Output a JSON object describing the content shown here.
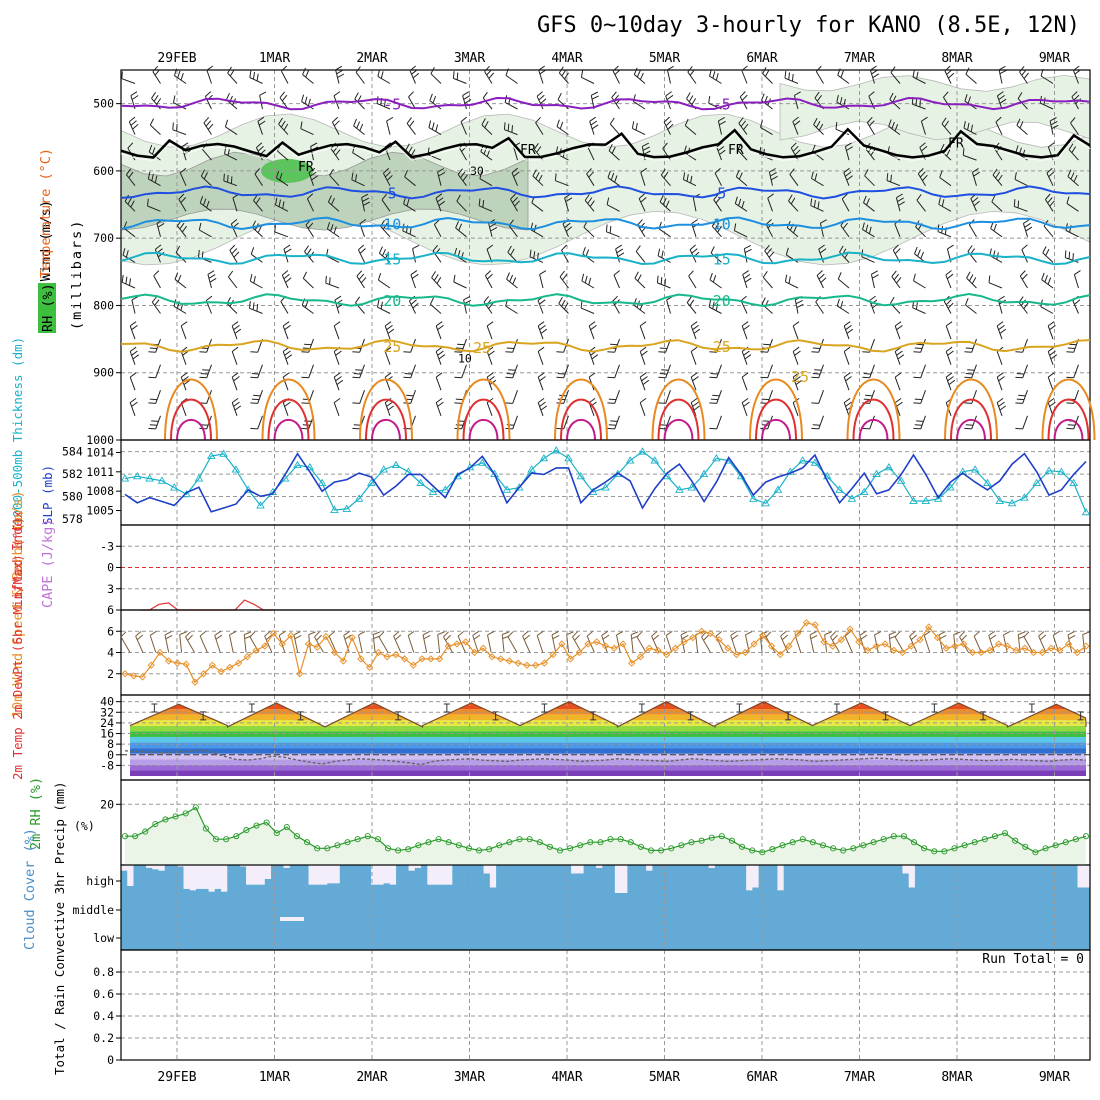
{
  "chart_data": {
    "type": "line",
    "title": "GFS 0~10day 3-hourly for KANO (8.5E, 12N)",
    "x_dates": [
      "29FEB",
      "1MAR",
      "2MAR",
      "3MAR",
      "4MAR",
      "5MAR",
      "6MAR",
      "7MAR",
      "8MAR",
      "9MAR"
    ],
    "panels": {
      "upper_air": {
        "ylabel_wind": "Wind (m/s)",
        "ylabel_temp": "Temperature (°C)",
        "ylabel_rh": "RH (%)",
        "ylabel_units": "(millibars)",
        "y_ticks": [
          "500",
          "600",
          "700",
          "800",
          "900",
          "1000"
        ],
        "y_range": [
          450,
          1000
        ],
        "temperature_contours": [
          {
            "label": "-5",
            "level_mb": 500,
            "color": "#8a1fbf"
          },
          {
            "label": "5",
            "level_mb": 632,
            "color": "#1f4fe0"
          },
          {
            "label": "10",
            "level_mb": 678,
            "color": "#1d8fe0"
          },
          {
            "label": "15",
            "level_mb": 730,
            "color": "#19b2c8"
          },
          {
            "label": "20",
            "level_mb": 792,
            "color": "#16b88c"
          },
          {
            "label": "25",
            "level_mb": 860,
            "color": "#d9a520"
          }
        ],
        "freezing_level_label": "FR",
        "freezing_level_mb": 570,
        "rh_labels": [
          "30",
          "10"
        ]
      },
      "thickness_slp": {
        "ylabel_thickness": "1000-500mb Thickness (dm)",
        "ylabel_slp": "SLP (mb)",
        "thickness_ticks": [
          "584",
          "582",
          "580",
          "578"
        ],
        "slp_ticks": [
          "1014",
          "1011",
          "1008",
          "1005"
        ],
        "thickness_dm": [
          581.6,
          581.8,
          581.6,
          581.4,
          580.8,
          580.2,
          581.6,
          583.6,
          583.8,
          582.4,
          580.6,
          579.2,
          580.4,
          581.6,
          582.8,
          582.6,
          581.2,
          578.8,
          578.9,
          579.8,
          581.2,
          582.4,
          582.8,
          582.2,
          581.2,
          580.4,
          580.6,
          581.8,
          582.6,
          583.0,
          582.0,
          580.6,
          580.8,
          582.4,
          583.4,
          584.1,
          583.4,
          581.8,
          580.4,
          580.8,
          582.0,
          583.2,
          584.0,
          583.2,
          581.8,
          580.6,
          580.8,
          582.0,
          583.4,
          583.2,
          581.8,
          579.8,
          579.4,
          580.6,
          582.2,
          583.2,
          583.0,
          581.8,
          580.6,
          579.8,
          580.4,
          582.0,
          582.6,
          581.4,
          579.6,
          579.6,
          579.8,
          580.8,
          582.2,
          582.4,
          581.2,
          579.6,
          579.4,
          579.9,
          581.2,
          582.3,
          582.2,
          581.2,
          578.6
        ],
        "slp_mb": [
          1007.5,
          1006.2,
          1007.0,
          1006.4,
          1005.8,
          1007.8,
          1008.6,
          1004.8,
          1005.4,
          1006.0,
          1008.2,
          1007.2,
          1007.6,
          1010.6,
          1013.8,
          1011.0,
          1008.0,
          1009.4,
          1009.8,
          1010.8,
          1010.2,
          1007.4,
          1008.8,
          1010.6,
          1010.6,
          1008.8,
          1007.0,
          1010.6,
          1011.6,
          1013.4,
          1010.6,
          1006.2,
          1008.6,
          1010.8,
          1010.6,
          1011.6,
          1011.6,
          1006.2,
          1008.2,
          1009.4,
          1010.8,
          1009.6,
          1005.4,
          1008.4,
          1010.8,
          1012.2,
          1009.6,
          1006.4,
          1009.4,
          1013.2,
          1010.6,
          1007.4,
          1009.4,
          1010.2,
          1010.8,
          1011.6,
          1013.6,
          1009.6,
          1006.2,
          1008.4,
          1010.8,
          1007.6,
          1008.2,
          1010.6,
          1013.6,
          1010.6,
          1007.0,
          1009.4,
          1010.8,
          1009.4,
          1008.2,
          1009.6,
          1012.2,
          1013.8,
          1011.0,
          1007.4,
          1008.2,
          1010.6,
          1012.6
        ]
      },
      "cape_li": {
        "ylabel_li": "Lifted Index",
        "ylabel_cape": "CAPE (J/kg)",
        "li_ticks": [
          "-3",
          "0",
          "3",
          "6"
        ],
        "li_range": [
          -6,
          6
        ],
        "lifted_index": [
          6,
          6,
          5.2,
          5.0,
          6,
          6,
          6,
          6,
          6,
          6,
          6,
          4.6,
          5.2,
          6,
          6
        ]
      },
      "wind10m": {
        "ylabel": "10m Wind Speed & Barbs (m/s)",
        "y_ticks": [
          "2",
          "4",
          "6"
        ],
        "y_range": [
          0,
          8
        ],
        "speed_ms": [
          2.0,
          1.8,
          1.7,
          2.8,
          4.0,
          3.2,
          3.0,
          2.9,
          1.2,
          2.0,
          2.8,
          2.2,
          2.6,
          3.0,
          3.6,
          4.2,
          4.6,
          5.8,
          4.8,
          5.6,
          2.0,
          4.8,
          4.5,
          5.5,
          4.0,
          3.2,
          5.4,
          3.4,
          2.6,
          4.0,
          3.6,
          3.8,
          3.4,
          2.8,
          3.4,
          3.4,
          3.4,
          4.6,
          4.8,
          5.0,
          4.0,
          4.4,
          3.6,
          3.4,
          3.2,
          3.0,
          2.8,
          2.8,
          3.0,
          3.8,
          4.8,
          3.4,
          4.0,
          4.8,
          5.0,
          4.6,
          4.4,
          4.8,
          3.0,
          3.6,
          4.4,
          4.2,
          3.8,
          4.4,
          5.0,
          5.4,
          6.0,
          5.8,
          5.2,
          4.4,
          3.8,
          4.0,
          4.8,
          5.6,
          4.6,
          3.8,
          4.6,
          5.8,
          6.8,
          6.6,
          5.0,
          4.6,
          5.2,
          6.2,
          5.0,
          4.2,
          4.6,
          4.8,
          4.2,
          4.0,
          4.6,
          5.2,
          6.4,
          5.4,
          4.4,
          4.6,
          4.8,
          4.0,
          4.0,
          4.2,
          4.8,
          4.6,
          4.2,
          4.4,
          4.0,
          4.0,
          4.4,
          4.2,
          4.8,
          4.0,
          4.6
        ]
      },
      "temperature": {
        "ylabel": "2m Temp 2m DewPt (6hr Min/Max) (°C)",
        "y_ticks": [
          "40",
          "32",
          "24",
          "16",
          "8",
          "0",
          "-8"
        ],
        "y_range": [
          -16,
          42
        ],
        "temp_min_c": [
          22,
          21,
          21,
          22,
          22,
          21,
          22,
          22,
          22,
          21
        ],
        "temp_max_c": [
          38,
          39,
          39,
          39,
          40,
          40,
          40,
          39,
          39,
          38
        ],
        "dewpoint_c": [
          3,
          2.5,
          2,
          1.5,
          2,
          2.5,
          3.5,
          2,
          -1,
          -3.5,
          -4,
          -3,
          -1,
          -2,
          -4,
          -5.5,
          -7,
          -5,
          -4,
          -3,
          -3.5,
          -4,
          -5,
          -6,
          -7.5,
          -5,
          -4,
          -3.5,
          -3,
          -4,
          -4.5,
          -5,
          -4,
          -3.5,
          -3,
          -3.5,
          -4,
          -5,
          -4.5,
          -4,
          -3,
          -3.5,
          -4,
          -4.5,
          -5,
          -4,
          -3,
          -3.5,
          -4.5,
          -5,
          -4.5,
          -4,
          -3.5,
          -3,
          -3.5,
          -4,
          -5,
          -4.5,
          -4,
          -3.5,
          -3,
          -2.5,
          -3,
          -4,
          -4.5,
          -4,
          -3.5,
          -3,
          -3.5,
          -4,
          -4.5,
          -4,
          -3.5,
          -4,
          -4.5,
          -5,
          -4,
          -3.5,
          -4
        ]
      },
      "rh2m": {
        "ylabel": "2m RH (%)",
        "y_ticks": [
          "20"
        ],
        "y_range": [
          0,
          28
        ],
        "rh_pct": [
          9.5,
          9.5,
          11,
          13.5,
          15,
          16,
          17,
          19,
          12,
          8.5,
          8.5,
          9.5,
          11.5,
          13,
          14,
          10.5,
          12.5,
          9.5,
          7.5,
          5.5,
          5.5,
          6.5,
          7.5,
          8.5,
          9.5,
          8.5,
          5.5,
          4.8,
          5.2,
          6.5,
          7.5,
          8.5,
          7.5,
          6.5,
          5.5,
          4.8,
          5.2,
          6.5,
          7.5,
          8.5,
          8.5,
          7.5,
          6,
          4.8,
          5.5,
          6.5,
          7.5,
          7.5,
          8.5,
          8.5,
          7.5,
          6,
          4.8,
          4.8,
          5.5,
          6.5,
          7.5,
          8,
          9,
          9.5,
          8,
          6,
          4.8,
          4.2,
          5.2,
          6.5,
          7.5,
          8.5,
          7.5,
          6.5,
          5.5,
          4.8,
          5.5,
          6.5,
          7.5,
          8.5,
          9.5,
          9.5,
          7.5,
          5.5,
          4.5,
          4.5,
          5.5,
          6.5,
          7.5,
          8.5,
          9.5,
          10.5,
          8,
          6,
          4.2,
          5.5,
          6.5,
          7.5,
          8.5,
          9.5
        ]
      },
      "cloud_cover": {
        "ylabel": "Cloud Cover (%)",
        "levels": [
          "high",
          "middle",
          "low"
        ],
        "high_pct": [
          80,
          25,
          100,
          100,
          90,
          85,
          80,
          100,
          100,
          95,
          15,
          10,
          15,
          15,
          5,
          15,
          5,
          100,
          100,
          95,
          30,
          30,
          30,
          50,
          100,
          100,
          90,
          100,
          100,
          100,
          30,
          30,
          30,
          35,
          35,
          100,
          100,
          100,
          100,
          100,
          30,
          30,
          35,
          30,
          100,
          100,
          80,
          90,
          100,
          30,
          30,
          30,
          30,
          100,
          100,
          100,
          100,
          100,
          70,
          20,
          100,
          100,
          100,
          100,
          100,
          100,
          100,
          100,
          100,
          100,
          100,
          100,
          70,
          70,
          100,
          100,
          90,
          100,
          100,
          0,
          0,
          100,
          100,
          100,
          80,
          100,
          100,
          100,
          100,
          100,
          100,
          100,
          100,
          100,
          90,
          100,
          100,
          100,
          100,
          100,
          10,
          20,
          100,
          100,
          100,
          10,
          100,
          100,
          100,
          100,
          100,
          100,
          100,
          100,
          100,
          100,
          100,
          100,
          100,
          100,
          100,
          100,
          100,
          100,
          100,
          70,
          20,
          100,
          100,
          100,
          100,
          100,
          100,
          100,
          100,
          100,
          100,
          100,
          100,
          100,
          100,
          100,
          100,
          100,
          100,
          100,
          100,
          100,
          100,
          100,
          100,
          100,
          100,
          20,
          20
        ]
      },
      "precip": {
        "ylabel": "Total / Rain Convective 3hr Precip (mm)",
        "y_ticks": [
          "0",
          "0.2",
          "0.4",
          "0.6",
          "0.8"
        ],
        "y_range": [
          0,
          1
        ],
        "run_total_label": "Run Total = 0"
      }
    },
    "grid": true
  }
}
